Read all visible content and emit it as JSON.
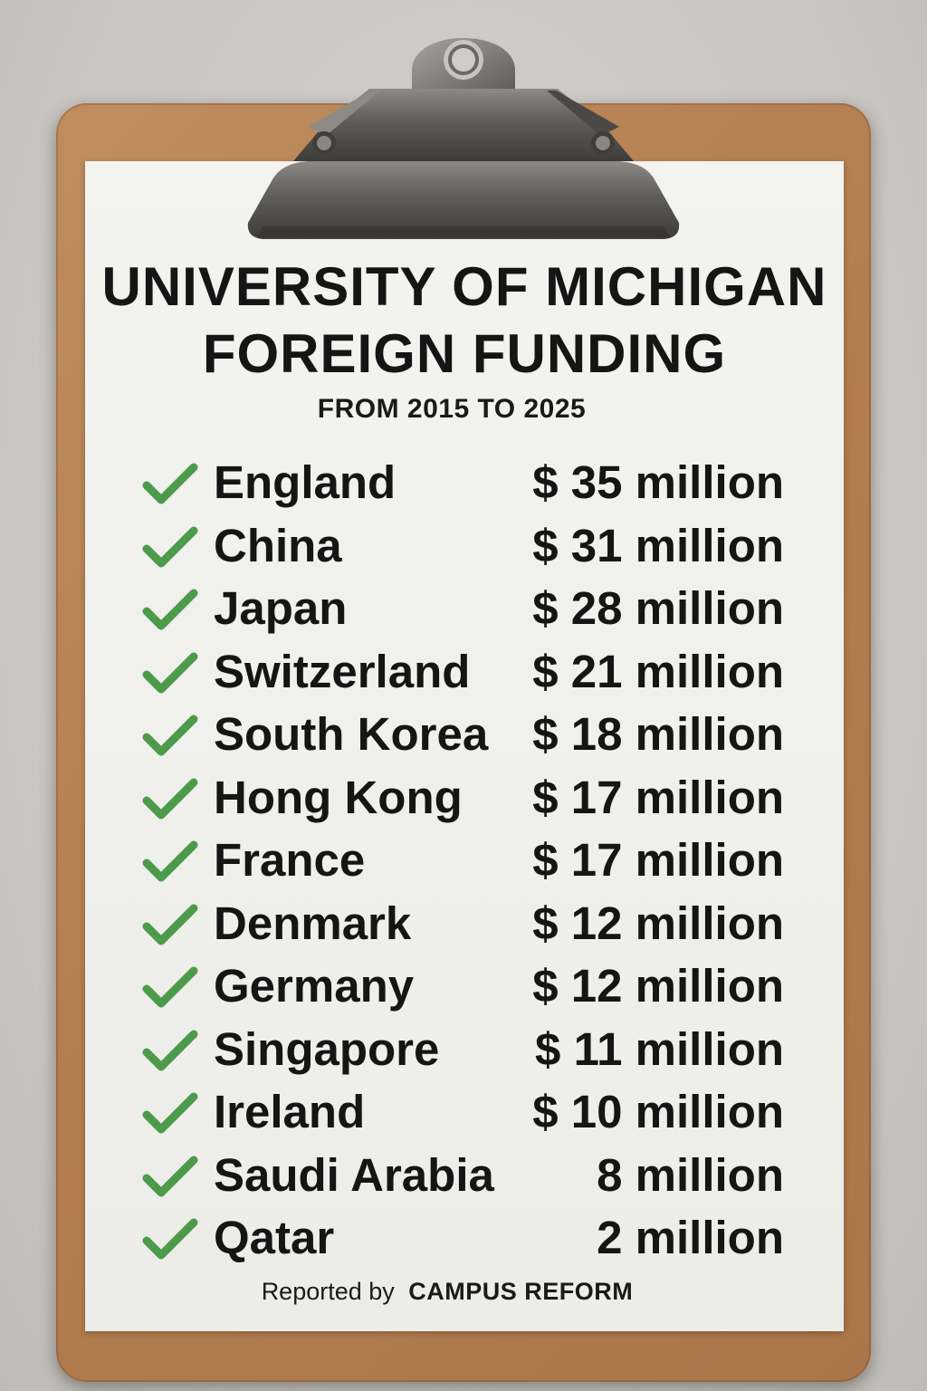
{
  "header": {
    "title_line1": "UNIVERSITY OF MICHIGAN",
    "title_line2": "FOREIGN FUNDING",
    "subtitle": "FROM 2015 TO 2025"
  },
  "rows": [
    {
      "country": "England",
      "amount": "$ 35 million"
    },
    {
      "country": "China",
      "amount": "$ 31 million"
    },
    {
      "country": "Japan",
      "amount": "$ 28 million"
    },
    {
      "country": "Switzerland",
      "amount": "$ 21 million"
    },
    {
      "country": "South Korea",
      "amount": "$ 18 million"
    },
    {
      "country": "Hong Kong",
      "amount": "$ 17 million"
    },
    {
      "country": "France",
      "amount": "$ 17 million"
    },
    {
      "country": "Denmark",
      "amount": "$ 12 million"
    },
    {
      "country": "Germany",
      "amount": "$ 12 million"
    },
    {
      "country": "Singapore",
      "amount": "$ 11 million"
    },
    {
      "country": "Ireland",
      "amount": "$ 10 million"
    },
    {
      "country": "Saudi Arabia",
      "amount": "8 million"
    },
    {
      "country": "Qatar",
      "amount": "2 million"
    }
  ],
  "footer": {
    "reported_by": "Reported by",
    "brand": "CAMPUS REFORM"
  },
  "icons": {
    "row_icon": "check-mark-icon",
    "clip_icon": "clipboard-clip-icon"
  },
  "colors": {
    "check": "#4c9a4a",
    "board": "#b98556",
    "paper": "#efefec",
    "text": "#151515"
  }
}
